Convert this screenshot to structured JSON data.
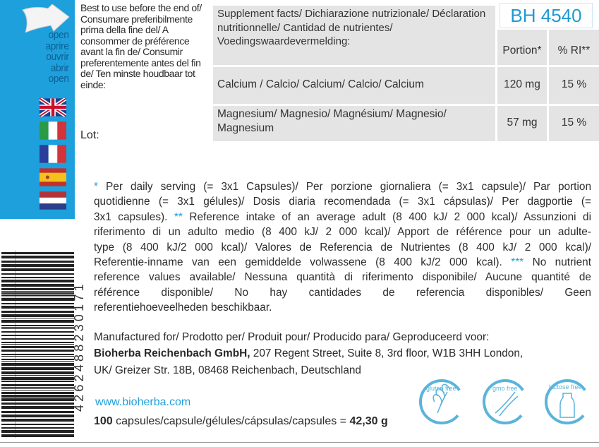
{
  "open_words": [
    "open",
    "aprire",
    "ouvrir",
    "abrir",
    "open"
  ],
  "flags": [
    "uk-flag-icon",
    "italy-flag-icon",
    "france-flag-icon",
    "spain-flag-icon",
    "netherlands-flag-icon"
  ],
  "best_before": "Best to use before the end of/ Consumare preferibilmente prima della fine del/ A consommer de préférence avant la fin de/ Consumir preferentemente antes del fin de/ Ten minste houdbaar tot einde:",
  "lot_label": "Lot:",
  "batch_code": "BH 4540",
  "table": {
    "header": "Supplement facts/ Dichiarazione nutrizionale/ Déclaration nutritionnelle/ Cantidad de nutrientes/ Voedingswaardevermelding:",
    "col_portion": "Portion*",
    "col_ri": "% RI**",
    "rows": [
      {
        "name": "Calcium / Calcio/ Calcium/ Calcio/ Calcium",
        "portion": "120 mg",
        "ri": "15 %"
      },
      {
        "name": "Magnesium/ Magnesio/ Magnésium/ Magnesio/ Magnesium",
        "portion": "57 mg",
        "ri": "15 %"
      }
    ]
  },
  "notes_lines": [
    "* Per daily serving (= 3x1 Capsules)/ Per porzione giornaliera (= 3x1 capsule)/ Par portion",
    "quotidienne (= 3x1 gélules)/ Dosis diaria recomendada (= 3x1 cápsulas)/ Per dagportie (=",
    "3x1 capsules). ** Reference intake of an average adult (8 400 kJ/ 2 000 kcal)/ Assunzioni di",
    "riferimento di un adulto medio (8 400 kJ/ 2 000 kcal)/ Apport de référence pour un adulte-",
    "type (8 400 kJ/2 000 kcal)/ Valores de Referencia de Nutrientes (8 400 kJ/ 2 000 kcal)/",
    "Referentie-inname van een gemiddelde volwassene (8 400 kJ/2 000 kcal). *** No nutrient",
    "reference values available/ Nessuna quantità di riferimento disponibile/ Aucune quantité de",
    "référence disponible/ No hay cantidades de referencia disponibles/ Geen",
    "referentiehoeveelheden beschikbaar."
  ],
  "manufactured_for": "Manufactured for/ Prodotto per/ Produit pour/ Producido para/ Geproduceerd voor:",
  "company": "Bioherba Reichenbach GmbH,",
  "address1": " 207 Regent Street, Suite 8, 3rd floor, W1B 3HH London,",
  "address2": "UK/ Greizer Str. 18B, 08468 Reichenbach, Deutschland",
  "website": "www.bioherba.com",
  "capsules_count": "100",
  "capsules_text": " capsules/capsule/gélules/cápsulas/capsules = ",
  "weight": "42,30 g",
  "barcode_number": "4262488230171",
  "badges": [
    "gluten free",
    "gmo free",
    "lactose free"
  ],
  "colors": {
    "brand_blue": "#1ea0dc",
    "table_grey": "#e4e4e4"
  }
}
